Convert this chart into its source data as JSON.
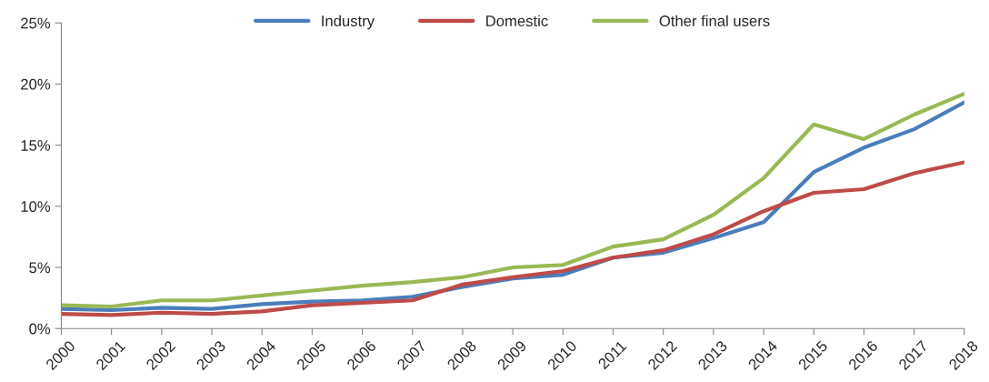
{
  "chart_data": {
    "type": "line",
    "categories": [
      "2000",
      "2001",
      "2002",
      "2003",
      "2004",
      "2005",
      "2006",
      "2007",
      "2008",
      "2009",
      "2010",
      "2011",
      "2012",
      "2013",
      "2014",
      "2015",
      "2016",
      "2017",
      "2018"
    ],
    "series": [
      {
        "name": "Industry",
        "color": "#4a7ebb",
        "values": [
          1.6,
          1.5,
          1.7,
          1.6,
          2.0,
          2.2,
          2.3,
          2.6,
          3.4,
          4.1,
          4.4,
          5.8,
          6.2,
          7.4,
          8.7,
          12.8,
          14.8,
          16.3,
          18.5
        ]
      },
      {
        "name": "Domestic",
        "color": "#be4b48",
        "values": [
          1.2,
          1.1,
          1.3,
          1.2,
          1.4,
          1.9,
          2.1,
          2.3,
          3.6,
          4.2,
          4.7,
          5.8,
          6.4,
          7.7,
          9.6,
          11.1,
          11.4,
          12.7,
          13.6
        ]
      },
      {
        "name": "Other final users",
        "color": "#98b954",
        "values": [
          1.9,
          1.8,
          2.3,
          2.3,
          2.7,
          3.1,
          3.5,
          3.8,
          4.2,
          5.0,
          5.2,
          6.7,
          7.3,
          9.3,
          12.3,
          16.7,
          15.5,
          17.5,
          19.2
        ]
      }
    ],
    "ylim": [
      0,
      25
    ],
    "yticks": [
      {
        "value": 0,
        "label": "0%"
      },
      {
        "value": 5,
        "label": "5%"
      },
      {
        "value": 10,
        "label": "10%"
      },
      {
        "value": 15,
        "label": "15%"
      },
      {
        "value": 20,
        "label": "20%"
      },
      {
        "value": 25,
        "label": "25%"
      }
    ],
    "grid": false,
    "legend": "top",
    "marker": "none",
    "line_style": "solid"
  }
}
